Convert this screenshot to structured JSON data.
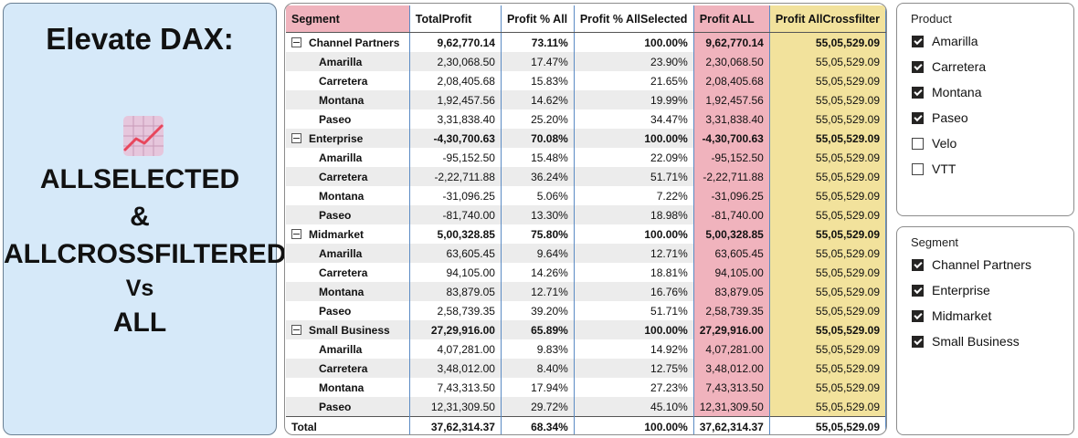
{
  "card": {
    "title": "Elevate DAX:",
    "line1": "ALLSELECTED",
    "line2": "&",
    "line3": "ALLCROSSFILTERED",
    "line4": "Vs",
    "line5": "ALL",
    "icon": "line-chart-icon",
    "icon_color": "#e8465c"
  },
  "table": {
    "headers": [
      "Segment",
      "TotalProfit",
      "Profit % All",
      "Profit % AllSelected",
      "Profit ALL",
      "Profit AllCrossfilter"
    ],
    "header_colors": {
      "pink": "#f0b3bd",
      "yellow": "#f2e29c"
    },
    "rows": [
      {
        "kind": "grp",
        "seg": "Channel Partners",
        "tp": "9,62,770.14",
        "pa": "73.11%",
        "ps": "100.00%",
        "pall": "9,62,770.14",
        "pcf": "55,05,529.09"
      },
      {
        "kind": "sub",
        "seg": "Amarilla",
        "tp": "2,30,068.50",
        "pa": "17.47%",
        "ps": "23.90%",
        "pall": "2,30,068.50",
        "pcf": "55,05,529.09"
      },
      {
        "kind": "sub",
        "seg": "Carretera",
        "tp": "2,08,405.68",
        "pa": "15.83%",
        "ps": "21.65%",
        "pall": "2,08,405.68",
        "pcf": "55,05,529.09"
      },
      {
        "kind": "sub",
        "seg": "Montana",
        "tp": "1,92,457.56",
        "pa": "14.62%",
        "ps": "19.99%",
        "pall": "1,92,457.56",
        "pcf": "55,05,529.09"
      },
      {
        "kind": "sub",
        "seg": "Paseo",
        "tp": "3,31,838.40",
        "pa": "25.20%",
        "ps": "34.47%",
        "pall": "3,31,838.40",
        "pcf": "55,05,529.09"
      },
      {
        "kind": "grp",
        "seg": "Enterprise",
        "tp": "-4,30,700.63",
        "pa": "70.08%",
        "ps": "100.00%",
        "pall": "-4,30,700.63",
        "pcf": "55,05,529.09"
      },
      {
        "kind": "sub",
        "seg": "Amarilla",
        "tp": "-95,152.50",
        "pa": "15.48%",
        "ps": "22.09%",
        "pall": "-95,152.50",
        "pcf": "55,05,529.09"
      },
      {
        "kind": "sub",
        "seg": "Carretera",
        "tp": "-2,22,711.88",
        "pa": "36.24%",
        "ps": "51.71%",
        "pall": "-2,22,711.88",
        "pcf": "55,05,529.09"
      },
      {
        "kind": "sub",
        "seg": "Montana",
        "tp": "-31,096.25",
        "pa": "5.06%",
        "ps": "7.22%",
        "pall": "-31,096.25",
        "pcf": "55,05,529.09"
      },
      {
        "kind": "sub",
        "seg": "Paseo",
        "tp": "-81,740.00",
        "pa": "13.30%",
        "ps": "18.98%",
        "pall": "-81,740.00",
        "pcf": "55,05,529.09"
      },
      {
        "kind": "grp",
        "seg": "Midmarket",
        "tp": "5,00,328.85",
        "pa": "75.80%",
        "ps": "100.00%",
        "pall": "5,00,328.85",
        "pcf": "55,05,529.09"
      },
      {
        "kind": "sub",
        "seg": "Amarilla",
        "tp": "63,605.45",
        "pa": "9.64%",
        "ps": "12.71%",
        "pall": "63,605.45",
        "pcf": "55,05,529.09"
      },
      {
        "kind": "sub",
        "seg": "Carretera",
        "tp": "94,105.00",
        "pa": "14.26%",
        "ps": "18.81%",
        "pall": "94,105.00",
        "pcf": "55,05,529.09"
      },
      {
        "kind": "sub",
        "seg": "Montana",
        "tp": "83,879.05",
        "pa": "12.71%",
        "ps": "16.76%",
        "pall": "83,879.05",
        "pcf": "55,05,529.09"
      },
      {
        "kind": "sub",
        "seg": "Paseo",
        "tp": "2,58,739.35",
        "pa": "39.20%",
        "ps": "51.71%",
        "pall": "2,58,739.35",
        "pcf": "55,05,529.09"
      },
      {
        "kind": "grp",
        "seg": "Small Business",
        "tp": "27,29,916.00",
        "pa": "65.89%",
        "ps": "100.00%",
        "pall": "27,29,916.00",
        "pcf": "55,05,529.09"
      },
      {
        "kind": "sub",
        "seg": "Amarilla",
        "tp": "4,07,281.00",
        "pa": "9.83%",
        "ps": "14.92%",
        "pall": "4,07,281.00",
        "pcf": "55,05,529.09"
      },
      {
        "kind": "sub",
        "seg": "Carretera",
        "tp": "3,48,012.00",
        "pa": "8.40%",
        "ps": "12.75%",
        "pall": "3,48,012.00",
        "pcf": "55,05,529.09"
      },
      {
        "kind": "sub",
        "seg": "Montana",
        "tp": "7,43,313.50",
        "pa": "17.94%",
        "ps": "27.23%",
        "pall": "7,43,313.50",
        "pcf": "55,05,529.09"
      },
      {
        "kind": "sub",
        "seg": "Paseo",
        "tp": "12,31,309.50",
        "pa": "29.72%",
        "ps": "45.10%",
        "pall": "12,31,309.50",
        "pcf": "55,05,529.09"
      }
    ],
    "total": {
      "seg": "Total",
      "tp": "37,62,314.37",
      "pa": "68.34%",
      "ps": "100.00%",
      "pall": "37,62,314.37",
      "pcf": "55,05,529.09"
    }
  },
  "product_slicer": {
    "title": "Product",
    "options": [
      {
        "label": "Amarilla",
        "checked": true
      },
      {
        "label": "Carretera",
        "checked": true
      },
      {
        "label": "Montana",
        "checked": true
      },
      {
        "label": "Paseo",
        "checked": true
      },
      {
        "label": "Velo",
        "checked": false
      },
      {
        "label": "VTT",
        "checked": false
      }
    ]
  },
  "segment_slicer": {
    "title": "Segment",
    "options": [
      {
        "label": "Channel Partners",
        "checked": true
      },
      {
        "label": "Enterprise",
        "checked": true
      },
      {
        "label": "Midmarket",
        "checked": true
      },
      {
        "label": "Small Business",
        "checked": true
      }
    ]
  }
}
